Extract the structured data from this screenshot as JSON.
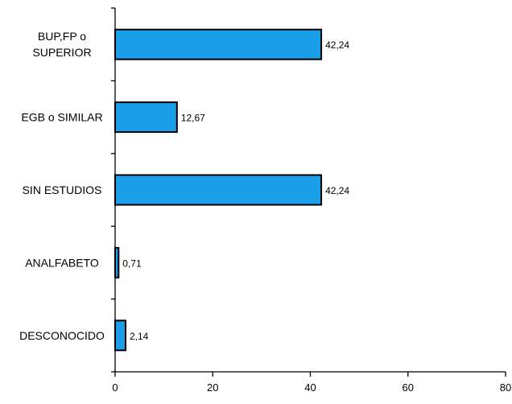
{
  "chart_data": {
    "type": "bar",
    "orientation": "horizontal",
    "categories": [
      "BUP,FP o SUPERIOR",
      "EGB o SIMILAR",
      "SIN ESTUDIOS",
      "ANALFABETO",
      "DESCONOCIDO"
    ],
    "category_lines": [
      [
        "BUP,FP o",
        "SUPERIOR"
      ],
      [
        "EGB o SIMILAR"
      ],
      [
        "SIN ESTUDIOS"
      ],
      [
        "ANALFABETO"
      ],
      [
        "DESCONOCIDO"
      ]
    ],
    "values": [
      42.24,
      12.67,
      42.24,
      0.71,
      2.14
    ],
    "value_labels": [
      "42,24",
      "12,67",
      "42,24",
      "0,71",
      "2,14"
    ],
    "xlim": [
      0,
      80
    ],
    "xticks": [
      0,
      20,
      40,
      60,
      80
    ],
    "grid": false,
    "bar_color": "#1a9ee8",
    "bar_edge_color": "#000000"
  }
}
